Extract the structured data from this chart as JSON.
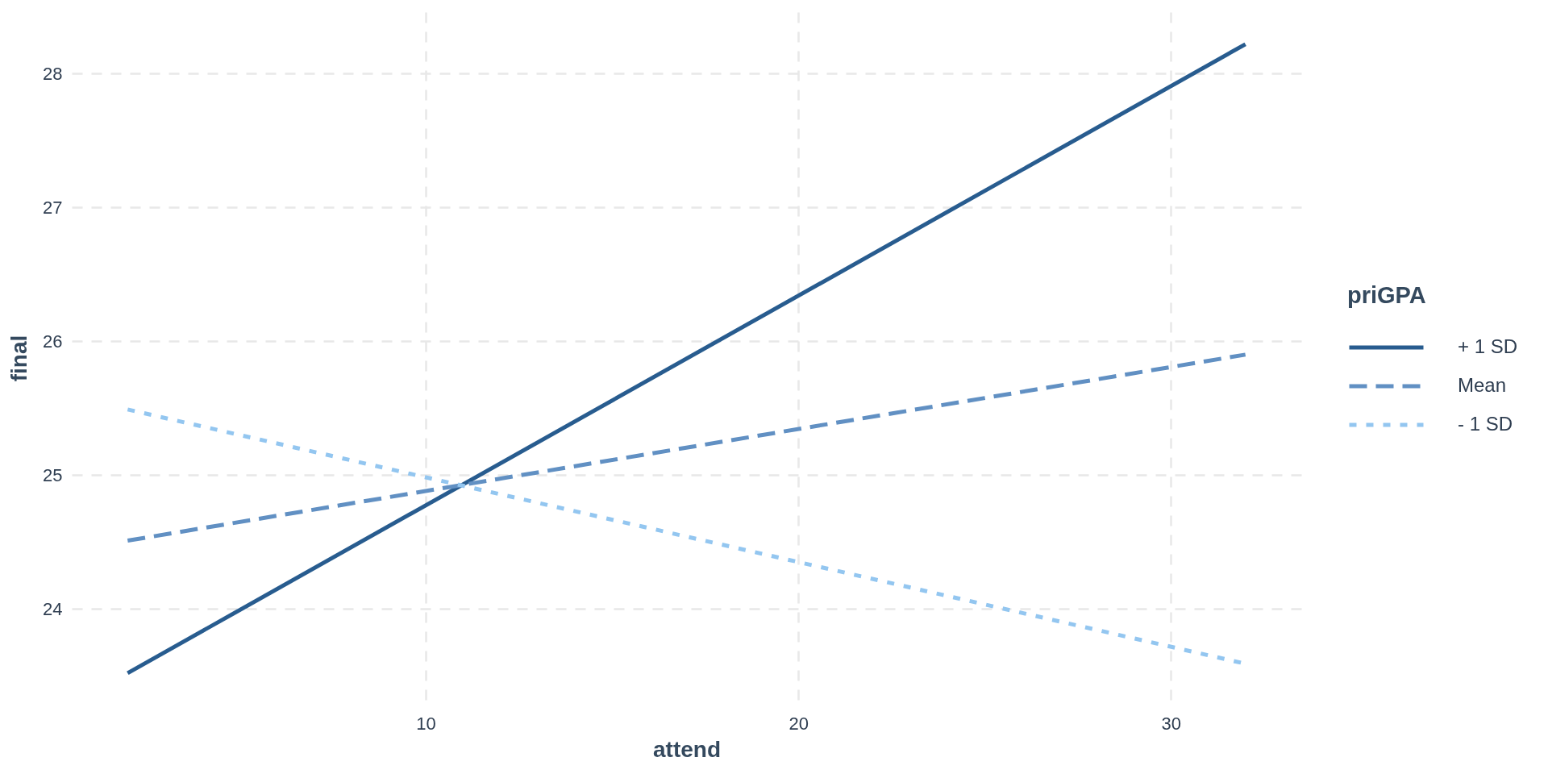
{
  "chart_data": {
    "type": "line",
    "xlabel": "attend",
    "ylabel": "final",
    "legend_title": "priGPA",
    "x": [
      2,
      32
    ],
    "series": [
      {
        "name": "+ 1 SD",
        "color": "#285c8f",
        "values": [
          23.52,
          28.22
        ],
        "line_style": "solid"
      },
      {
        "name": "Mean",
        "color": "#6190c3",
        "values": [
          24.51,
          25.9
        ],
        "line_style": "dashed"
      },
      {
        "name": "- 1 SD",
        "color": "#93c6f0",
        "values": [
          25.49,
          23.59
        ],
        "line_style": "dotted"
      }
    ],
    "xlim": [
      0.5,
      33.5
    ],
    "ylim": [
      23.29,
      28.46
    ],
    "xticks": [
      10,
      20,
      30
    ],
    "yticks": [
      24,
      25,
      26,
      27,
      28
    ],
    "grid": true,
    "legend": "right"
  }
}
